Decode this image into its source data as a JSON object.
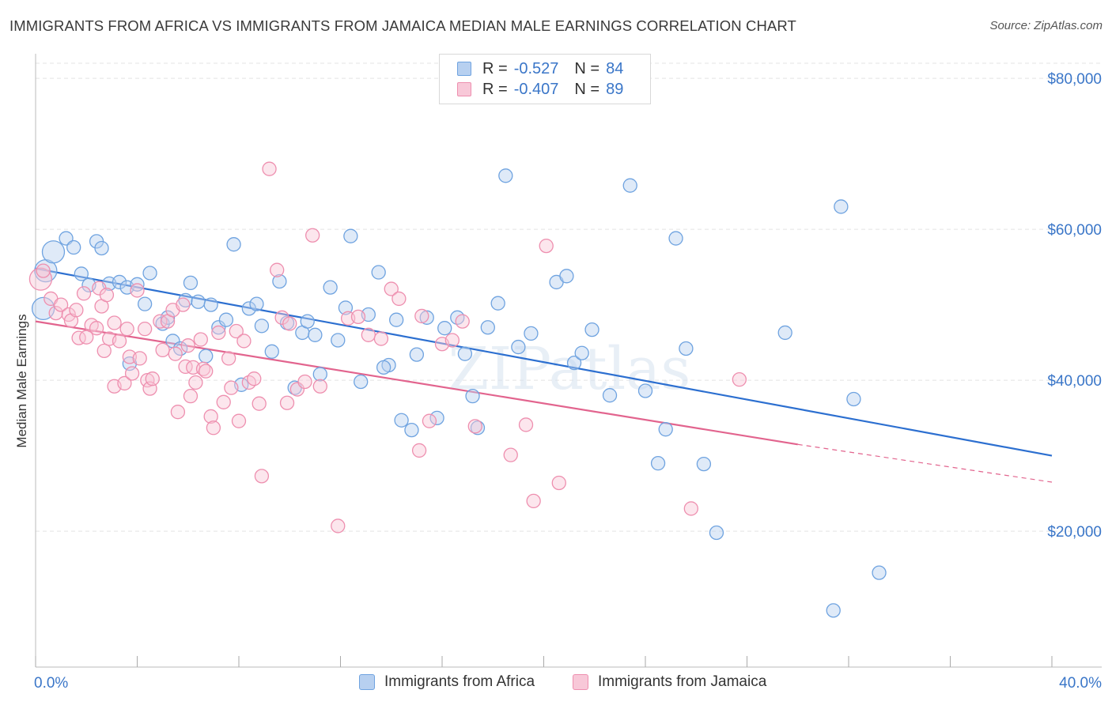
{
  "title": "IMMIGRANTS FROM AFRICA VS IMMIGRANTS FROM JAMAICA MEDIAN MALE EARNINGS CORRELATION CHART",
  "source": "Source: ZipAtlas.com",
  "watermark": "ZIPatlas",
  "colors": {
    "africa": "#6fa3e0",
    "africa_fill": "#b7d0f0",
    "africa_line": "#2c6fd0",
    "jamaica": "#ee8faf",
    "jamaica_fill": "#f8c8d8",
    "jamaica_line": "#e2648e",
    "axis_value": "#3a76c8",
    "grid": "#e3e3e3"
  },
  "legend": {
    "africa": {
      "r_label": "R =",
      "r_value": "-0.527",
      "n_label": "N =",
      "n_value": "84"
    },
    "jamaica": {
      "r_label": "R =",
      "r_value": "-0.407",
      "n_label": "N =",
      "n_value": "89"
    }
  },
  "bottom_legend": {
    "africa": "Immigrants from Africa",
    "jamaica": "Immigrants from Jamaica"
  },
  "chart_data": {
    "type": "scatter",
    "title": "IMMIGRANTS FROM AFRICA VS IMMIGRANTS FROM JAMAICA MEDIAN MALE EARNINGS CORRELATION CHART",
    "xlabel": "",
    "ylabel": "Median Male Earnings",
    "xlim": [
      0,
      40
    ],
    "ylim": [
      2000,
      82000
    ],
    "x_tick_labels": [
      "0.0%",
      "40.0%"
    ],
    "y_ticks": [
      20000,
      40000,
      60000,
      80000
    ],
    "y_tick_labels": [
      "$20,000",
      "$40,000",
      "$60,000",
      "$80,000"
    ],
    "grid": true,
    "legend_position": "top-center",
    "series": [
      {
        "name": "Immigrants from Africa",
        "R": -0.527,
        "N": 84,
        "trend": {
          "x": [
            0,
            40
          ],
          "y": [
            54800,
            30000
          ]
        },
        "points": [
          [
            0.3,
            49500,
            1
          ],
          [
            0.4,
            54500,
            1
          ],
          [
            0.7,
            57000,
            1
          ],
          [
            1.2,
            58800,
            0
          ],
          [
            1.5,
            57600,
            0
          ],
          [
            1.8,
            54100,
            0
          ],
          [
            2.1,
            52600,
            0
          ],
          [
            2.4,
            58400,
            0
          ],
          [
            2.6,
            57500,
            0
          ],
          [
            2.9,
            52800,
            0
          ],
          [
            3.3,
            53000,
            0
          ],
          [
            3.6,
            52300,
            0
          ],
          [
            4.0,
            52700,
            0
          ],
          [
            4.3,
            50100,
            0
          ],
          [
            4.5,
            54200,
            0
          ],
          [
            5.0,
            47500,
            0
          ],
          [
            5.2,
            48300,
            0
          ],
          [
            5.4,
            45200,
            0
          ],
          [
            5.7,
            44200,
            0
          ],
          [
            5.9,
            50600,
            0
          ],
          [
            6.1,
            52900,
            0
          ],
          [
            6.4,
            50400,
            0
          ],
          [
            6.7,
            43200,
            0
          ],
          [
            6.9,
            50000,
            0
          ],
          [
            7.2,
            47000,
            0
          ],
          [
            7.5,
            48000,
            0
          ],
          [
            7.8,
            58000,
            0
          ],
          [
            8.1,
            39400,
            0
          ],
          [
            8.4,
            49500,
            0
          ],
          [
            8.7,
            50100,
            0
          ],
          [
            8.9,
            47200,
            0
          ],
          [
            9.3,
            43800,
            0
          ],
          [
            9.6,
            53100,
            0
          ],
          [
            9.9,
            47600,
            0
          ],
          [
            10.2,
            39000,
            0
          ],
          [
            10.5,
            46300,
            0
          ],
          [
            10.7,
            47800,
            0
          ],
          [
            11.0,
            46000,
            0
          ],
          [
            11.2,
            40800,
            0
          ],
          [
            11.6,
            52300,
            0
          ],
          [
            11.9,
            45300,
            0
          ],
          [
            12.2,
            49600,
            0
          ],
          [
            12.4,
            59100,
            0
          ],
          [
            12.8,
            39800,
            0
          ],
          [
            13.1,
            48700,
            0
          ],
          [
            13.5,
            54300,
            0
          ],
          [
            13.9,
            42000,
            0
          ],
          [
            14.2,
            48000,
            0
          ],
          [
            14.4,
            34700,
            0
          ],
          [
            14.8,
            33400,
            0
          ],
          [
            15.0,
            43400,
            0
          ],
          [
            15.4,
            48300,
            0
          ],
          [
            15.8,
            35000,
            0
          ],
          [
            16.1,
            46900,
            0
          ],
          [
            16.6,
            48300,
            0
          ],
          [
            16.9,
            43500,
            0
          ],
          [
            17.2,
            37900,
            0
          ],
          [
            17.4,
            33700,
            0
          ],
          [
            17.8,
            47000,
            0
          ],
          [
            18.2,
            50200,
            0
          ],
          [
            18.5,
            67100,
            0
          ],
          [
            19.0,
            44400,
            0
          ],
          [
            20.5,
            53000,
            0
          ],
          [
            20.9,
            53800,
            0
          ],
          [
            21.2,
            42300,
            0
          ],
          [
            21.5,
            43600,
            0
          ],
          [
            21.9,
            46700,
            0
          ],
          [
            22.6,
            38000,
            0
          ],
          [
            23.4,
            65800,
            0
          ],
          [
            24.0,
            38600,
            0
          ],
          [
            24.5,
            29000,
            0
          ],
          [
            24.8,
            33500,
            0
          ],
          [
            25.2,
            58800,
            0
          ],
          [
            25.6,
            44200,
            0
          ],
          [
            26.3,
            28900,
            0
          ],
          [
            26.8,
            19800,
            0
          ],
          [
            29.5,
            46300,
            0
          ],
          [
            31.7,
            63000,
            0
          ],
          [
            32.2,
            37500,
            0
          ],
          [
            31.4,
            9500,
            0
          ],
          [
            33.2,
            14500,
            0
          ],
          [
            3.7,
            42200,
            0
          ],
          [
            19.5,
            46200,
            0
          ],
          [
            13.7,
            41700,
            0
          ]
        ]
      },
      {
        "name": "Immigrants from Jamaica",
        "R": -0.407,
        "N": 89,
        "trend": {
          "x": [
            0,
            30
          ],
          "y": [
            47800,
            31500
          ]
        },
        "trend_dashed": {
          "x": [
            30,
            40
          ],
          "y": [
            31500,
            26500
          ]
        },
        "points": [
          [
            0.2,
            53400,
            1
          ],
          [
            0.3,
            54500,
            0
          ],
          [
            0.6,
            50800,
            0
          ],
          [
            0.8,
            48900,
            0
          ],
          [
            1.0,
            50000,
            0
          ],
          [
            1.3,
            48700,
            0
          ],
          [
            1.4,
            47900,
            0
          ],
          [
            1.6,
            49300,
            0
          ],
          [
            1.7,
            45600,
            0
          ],
          [
            1.9,
            51500,
            0
          ],
          [
            2.0,
            45700,
            0
          ],
          [
            2.2,
            47300,
            0
          ],
          [
            2.4,
            46900,
            0
          ],
          [
            2.5,
            52200,
            0
          ],
          [
            2.6,
            49800,
            0
          ],
          [
            2.7,
            43900,
            0
          ],
          [
            2.8,
            51300,
            0
          ],
          [
            2.9,
            45500,
            0
          ],
          [
            3.1,
            47600,
            0
          ],
          [
            3.1,
            39200,
            0
          ],
          [
            3.3,
            45200,
            0
          ],
          [
            3.5,
            39600,
            0
          ],
          [
            3.6,
            46800,
            0
          ],
          [
            3.7,
            43100,
            0
          ],
          [
            3.8,
            40900,
            0
          ],
          [
            4.0,
            51900,
            0
          ],
          [
            4.1,
            42900,
            0
          ],
          [
            4.3,
            46800,
            0
          ],
          [
            4.4,
            40000,
            0
          ],
          [
            4.5,
            38900,
            0
          ],
          [
            4.6,
            40200,
            0
          ],
          [
            4.9,
            47800,
            0
          ],
          [
            5.0,
            44000,
            0
          ],
          [
            5.2,
            47800,
            0
          ],
          [
            5.4,
            49300,
            0
          ],
          [
            5.5,
            43500,
            0
          ],
          [
            5.6,
            35800,
            0
          ],
          [
            5.8,
            50000,
            0
          ],
          [
            5.9,
            41800,
            0
          ],
          [
            6.0,
            44600,
            0
          ],
          [
            6.1,
            37900,
            0
          ],
          [
            6.2,
            41700,
            0
          ],
          [
            6.3,
            39700,
            0
          ],
          [
            6.5,
            45400,
            0
          ],
          [
            6.6,
            41500,
            0
          ],
          [
            6.7,
            41200,
            0
          ],
          [
            6.9,
            35200,
            0
          ],
          [
            7.0,
            33700,
            0
          ],
          [
            7.2,
            46300,
            0
          ],
          [
            7.4,
            37100,
            0
          ],
          [
            7.6,
            42900,
            0
          ],
          [
            7.7,
            39000,
            0
          ],
          [
            7.9,
            46500,
            0
          ],
          [
            8.0,
            34600,
            0
          ],
          [
            8.2,
            45200,
            0
          ],
          [
            8.4,
            39700,
            0
          ],
          [
            8.6,
            40200,
            0
          ],
          [
            8.8,
            36900,
            0
          ],
          [
            8.9,
            27300,
            0
          ],
          [
            9.2,
            68000,
            0
          ],
          [
            9.5,
            54600,
            0
          ],
          [
            9.7,
            48300,
            0
          ],
          [
            10.0,
            47500,
            0
          ],
          [
            10.3,
            38800,
            0
          ],
          [
            10.6,
            39800,
            0
          ],
          [
            10.9,
            59200,
            0
          ],
          [
            11.2,
            39200,
            0
          ],
          [
            11.9,
            20700,
            0
          ],
          [
            12.3,
            48200,
            0
          ],
          [
            12.7,
            48400,
            0
          ],
          [
            13.1,
            46000,
            0
          ],
          [
            13.6,
            45500,
            0
          ],
          [
            14.0,
            52100,
            0
          ],
          [
            14.3,
            50800,
            0
          ],
          [
            15.1,
            30700,
            0
          ],
          [
            15.5,
            34600,
            0
          ],
          [
            16.0,
            44800,
            0
          ],
          [
            16.4,
            45300,
            0
          ],
          [
            16.8,
            47800,
            0
          ],
          [
            17.3,
            33900,
            0
          ],
          [
            18.7,
            30100,
            0
          ],
          [
            19.3,
            34100,
            0
          ],
          [
            19.6,
            24000,
            0
          ],
          [
            20.1,
            57800,
            0
          ],
          [
            20.6,
            26400,
            0
          ],
          [
            25.8,
            23000,
            0
          ],
          [
            27.7,
            40100,
            0
          ],
          [
            15.2,
            48500,
            0
          ],
          [
            9.9,
            37000,
            0
          ]
        ]
      }
    ]
  }
}
